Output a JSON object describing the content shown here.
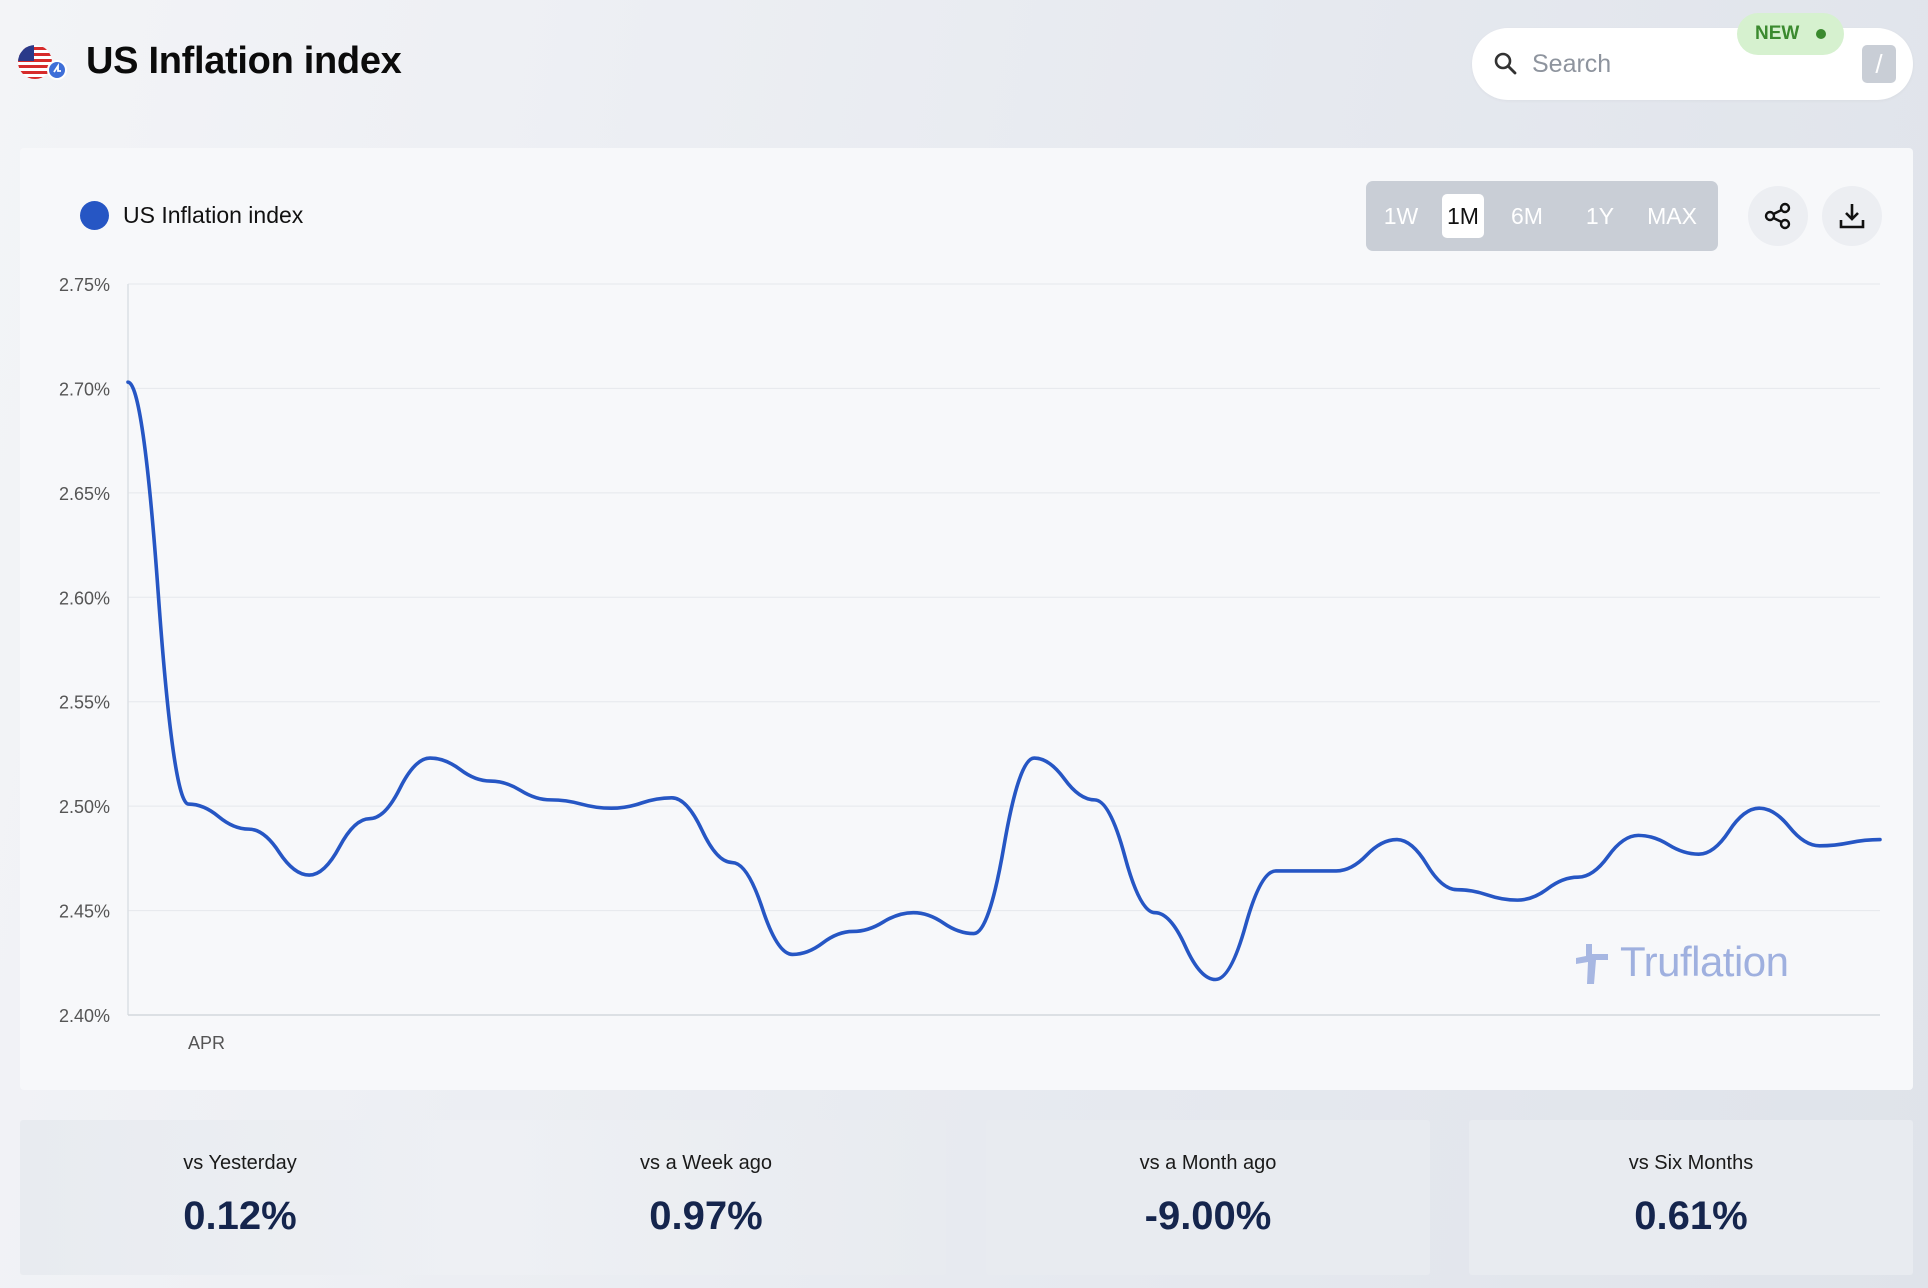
{
  "header": {
    "title": "US Inflation index",
    "flag_icon": "us-flag-icon",
    "search": {
      "placeholder": "Search",
      "shortcut": "/",
      "badge": "NEW"
    }
  },
  "legend": {
    "label": "US Inflation index",
    "color": "#2656c4"
  },
  "range_tabs": [
    {
      "label": "1W",
      "active": false
    },
    {
      "label": "1M",
      "active": true
    },
    {
      "label": "6M",
      "active": false
    },
    {
      "label": "1Y",
      "active": false
    },
    {
      "label": "MAX",
      "active": false
    }
  ],
  "actions": {
    "share_icon": "share-icon",
    "download_icon": "download-icon"
  },
  "watermark": {
    "text": "Truflation"
  },
  "chart_data": {
    "type": "line",
    "title": "",
    "xlabel": "",
    "ylabel": "",
    "x_tick_labels": [
      "APR"
    ],
    "y_ticks": [
      "2.40%",
      "2.45%",
      "2.50%",
      "2.55%",
      "2.60%",
      "2.65%",
      "2.70%",
      "2.75%"
    ],
    "ylim": [
      2.4,
      2.75
    ],
    "grid": true,
    "series": [
      {
        "name": "US Inflation index",
        "color": "#2656c4",
        "values": [
          2.703,
          2.501,
          2.489,
          2.467,
          2.494,
          2.523,
          2.512,
          2.503,
          2.499,
          2.504,
          2.473,
          2.429,
          2.44,
          2.449,
          2.439,
          2.523,
          2.503,
          2.449,
          2.417,
          2.469,
          2.469,
          2.484,
          2.46,
          2.455,
          2.466,
          2.486,
          2.477,
          2.499,
          2.481,
          2.484
        ]
      }
    ]
  },
  "stats": [
    {
      "label": "vs Yesterday",
      "value": "0.12%"
    },
    {
      "label": "vs a Week ago",
      "value": "0.97%"
    },
    {
      "label": "vs a Month ago",
      "value": "-9.00%"
    },
    {
      "label": "vs Six Months",
      "value": "0.61%"
    }
  ]
}
